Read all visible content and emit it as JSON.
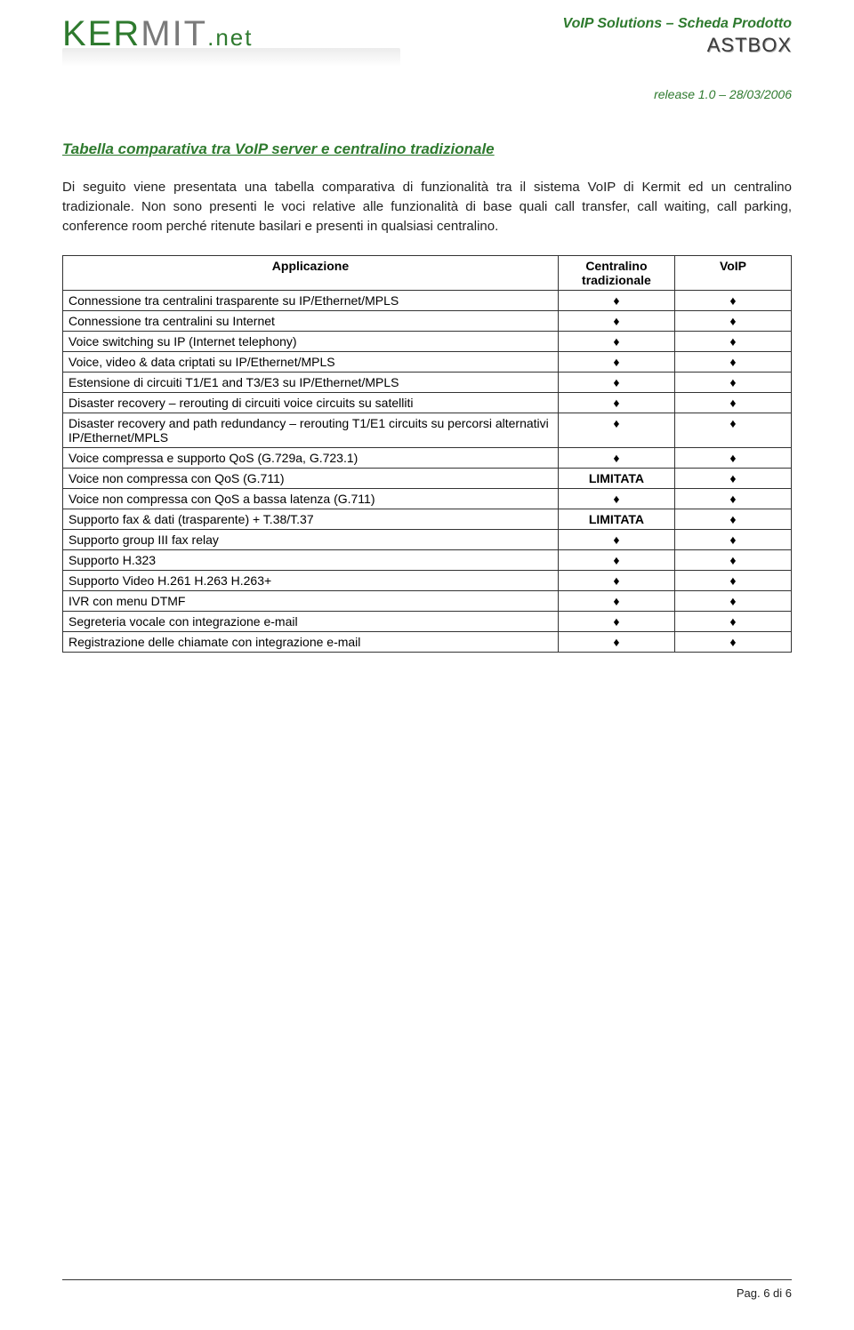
{
  "header": {
    "logo_ker": "KER",
    "logo_mit": "MIT",
    "logo_dotnet": ".net",
    "subtitle": "VoIP Solutions – Scheda Prodotto",
    "astbox": "ASTBOX",
    "release": "release 1.0 – 28/03/2006"
  },
  "section": {
    "title": "Tabella comparativa tra VoIP server e centralino tradizionale",
    "intro": "Di seguito viene presentata una tabella comparativa di funzionalità tra il sistema VoIP di Kermit ed un centralino tradizionale. Non sono presenti le voci relative alle funzionalità di base quali call transfer, call waiting, call parking, conference room perché ritenute basilari e presenti in qualsiasi centralino."
  },
  "table": {
    "head_app": "Applicazione",
    "head_trad": "Centralino tradizionale",
    "head_voip": "VoIP",
    "diamond": "♦",
    "limitata": "LIMITATA",
    "rows": [
      {
        "feat": "Connessione tra centralini trasparente su  IP/Ethernet/MPLS",
        "trad": "♦",
        "voip": "♦"
      },
      {
        "feat": "Connessione tra centralini su Internet",
        "trad": "♦",
        "voip": "♦"
      },
      {
        "feat": "Voice switching su IP (Internet telephony)",
        "trad": "♦",
        "voip": "♦"
      },
      {
        "feat": "Voice, video & data criptati su IP/Ethernet/MPLS",
        "trad": "♦",
        "voip": "♦"
      },
      {
        "feat": "Estensione di circuiti T1/E1 and T3/E3 su IP/Ethernet/MPLS",
        "trad": "♦",
        "voip": "♦"
      },
      {
        "feat": "Disaster recovery – rerouting di circuiti voice circuits su satelliti",
        "trad": "♦",
        "voip": "♦"
      },
      {
        "feat": "Disaster recovery and path redundancy – rerouting T1/E1 circuits su percorsi alternativi IP/Ethernet/MPLS",
        "trad": "♦",
        "voip": "♦"
      },
      {
        "feat": "Voice compressa e supporto QoS  (G.729a, G.723.1)",
        "trad": "♦",
        "voip": "♦"
      },
      {
        "feat": "Voice non compressa con QoS (G.711)",
        "trad": "LIMITATA",
        "voip": "♦"
      },
      {
        "feat": "Voice non compressa con QoS a bassa latenza (G.711)",
        "trad": "♦",
        "voip": "♦"
      },
      {
        "feat": "Supporto fax & dati (trasparente) + T.38/T.37",
        "trad": "LIMITATA",
        "voip": "♦"
      },
      {
        "feat": "Supporto group III fax relay",
        "trad": "♦",
        "voip": "♦"
      },
      {
        "feat": "Supporto H.323",
        "trad": "♦",
        "voip": "♦"
      },
      {
        "feat": "Supporto Video H.261 H.263 H.263+",
        "trad": "♦",
        "voip": "♦"
      },
      {
        "feat": "IVR con menu DTMF",
        "trad": "♦",
        "voip": "♦"
      },
      {
        "feat": "Segreteria vocale con integrazione e-mail",
        "trad": "♦",
        "voip": "♦"
      },
      {
        "feat": "Registrazione delle chiamate con integrazione e-mail",
        "trad": "♦",
        "voip": "♦"
      }
    ]
  },
  "footer": {
    "page": "Pag. 6 di 6"
  },
  "style": {
    "accent_color": "#2e7a2e",
    "text_color": "#222222",
    "border_color": "#333333",
    "background_color": "#ffffff",
    "body_font_size": 15,
    "title_font_size": 17,
    "table_font_size": 14,
    "col_widths_pct": [
      68,
      16,
      16
    ]
  }
}
